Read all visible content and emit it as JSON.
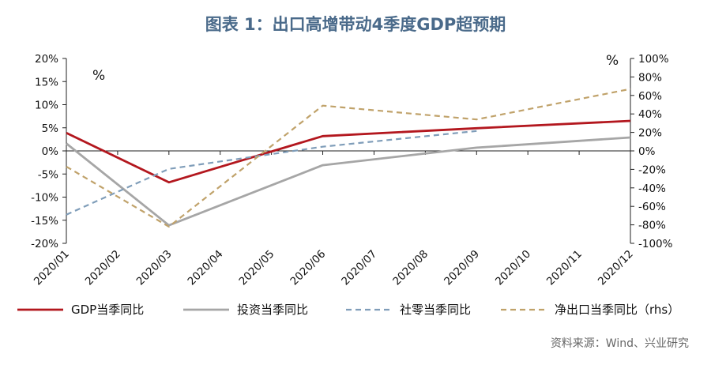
{
  "chart_data": {
    "type": "line",
    "title": "图表 1：出口高增带动4季度GDP超预期",
    "left_unit": "%",
    "right_unit": "%",
    "categories": [
      "2020/01",
      "2020/02",
      "2020/03",
      "2020/04",
      "2020/05",
      "2020/06",
      "2020/07",
      "2020/08",
      "2020/09",
      "2020/10",
      "2020/11",
      "2020/12"
    ],
    "y_left": {
      "min": -20,
      "max": 20,
      "step": 5,
      "format": "percent"
    },
    "y_right": {
      "min": -100,
      "max": 100,
      "step": 20,
      "format": "percent"
    },
    "series": [
      {
        "name": "GDP当季同比",
        "axis": "left",
        "color": "#b3171e",
        "style": "solid",
        "points": [
          [
            0,
            3.9
          ],
          [
            2,
            -6.8
          ],
          [
            5,
            3.2
          ],
          [
            8,
            4.9
          ],
          [
            11,
            6.5
          ]
        ]
      },
      {
        "name": "投资当季同比",
        "axis": "left",
        "color": "#a6a6a6",
        "style": "solid",
        "points": [
          [
            0,
            1.6
          ],
          [
            2,
            -16.1
          ],
          [
            5,
            -3.1
          ],
          [
            8,
            0.7
          ],
          [
            11,
            2.9
          ]
        ]
      },
      {
        "name": "社零当季同比",
        "axis": "left",
        "color": "#7f9db9",
        "style": "dashed",
        "points": [
          [
            0,
            -13.8
          ],
          [
            2,
            -3.9
          ],
          [
            5,
            0.9
          ],
          [
            8,
            4.3
          ],
          [
            11,
            null
          ]
        ]
      },
      {
        "name": "净出口当季同比（rhs）",
        "axis": "right",
        "color": "#c0a26a",
        "style": "dashed",
        "points": [
          [
            0,
            -17
          ],
          [
            2,
            -82
          ],
          [
            5,
            49
          ],
          [
            8,
            34
          ],
          [
            11,
            67
          ]
        ]
      }
    ],
    "source": "资料来源：Wind、兴业研究"
  }
}
